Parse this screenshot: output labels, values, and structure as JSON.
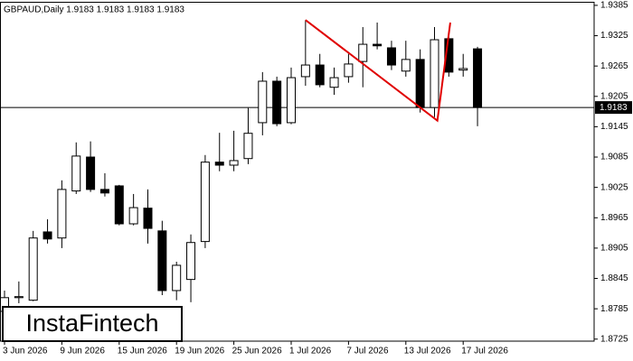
{
  "chart_data": {
    "type": "candlestick",
    "title": "GBPAUD,Daily  1.9183 1.9183 1.9183 1.9183",
    "categories": [
      "3 Jun 2026",
      null,
      null,
      null,
      "9 Jun 2026",
      null,
      null,
      null,
      "15 Jun 2026",
      null,
      null,
      null,
      "19 Jun 2026",
      null,
      null,
      null,
      "25 Jun 2026",
      null,
      null,
      null,
      "1 Jul 2026",
      null,
      null,
      null,
      "7 Jul 2026",
      null,
      null,
      null,
      "13 Jul 2026",
      null,
      null,
      null,
      "17 Jul 2026",
      null
    ],
    "open": [
      1.878,
      1.8807,
      1.8802,
      1.8937,
      1.8925,
      1.9018,
      1.9085,
      1.9021,
      1.9028,
      1.8953,
      1.8984,
      1.8939,
      1.8821,
      1.8843,
      1.8918,
      1.9075,
      1.9069,
      1.9082,
      1.9153,
      1.9235,
      1.9153,
      1.9244,
      1.9267,
      1.9223,
      1.9244,
      1.9274,
      1.9308,
      1.9301,
      1.9255,
      1.9278,
      1.9183,
      1.9319,
      1.9257,
      1.9299
    ],
    "high": [
      1.8821,
      1.8839,
      1.8939,
      1.8962,
      1.9039,
      1.9114,
      1.9116,
      1.9053,
      1.903,
      1.9012,
      1.9021,
      1.8959,
      1.8878,
      1.8932,
      1.9089,
      1.9133,
      1.9137,
      1.9182,
      1.9253,
      1.9244,
      1.9262,
      1.9356,
      1.9289,
      1.9262,
      1.9289,
      1.9342,
      1.9351,
      1.9315,
      1.9315,
      1.9298,
      1.9342,
      1.9324,
      1.9289,
      1.9303
    ],
    "low": [
      1.8771,
      1.8796,
      1.88,
      1.8914,
      1.8905,
      1.9012,
      1.9016,
      1.9007,
      1.895,
      1.895,
      1.8914,
      1.8812,
      1.8802,
      1.8798,
      1.8905,
      1.9057,
      1.9057,
      1.9071,
      1.9128,
      1.9146,
      1.915,
      1.9226,
      1.9223,
      1.9208,
      1.9232,
      1.9223,
      1.9298,
      1.9257,
      1.9244,
      1.9173,
      1.9164,
      1.9244,
      1.9244,
      1.9146
    ],
    "close": [
      1.8807,
      1.8809,
      1.8925,
      1.8923,
      1.9021,
      1.9087,
      1.9021,
      1.9014,
      1.8953,
      1.8985,
      1.8944,
      1.8821,
      1.8871,
      1.8916,
      1.9075,
      1.9069,
      1.9078,
      1.9132,
      1.9235,
      1.9151,
      1.9242,
      1.9267,
      1.9228,
      1.9242,
      1.9269,
      1.9308,
      1.9305,
      1.9267,
      1.9278,
      1.9183,
      1.9317,
      1.9253,
      1.926,
      1.9183
    ],
    "ylim": [
      1.8721,
      1.9392
    ],
    "yticks": [
      1.9385,
      1.9325,
      1.9265,
      1.9205,
      1.9145,
      1.9085,
      1.9025,
      1.8965,
      1.8905,
      1.8845,
      1.8785,
      1.8725
    ],
    "current_price": 1.9183,
    "pattern": {
      "color": "#e00000",
      "x": [
        21,
        30.2,
        31.1
      ],
      "values": [
        1.9356,
        1.9157,
        1.9351
      ]
    },
    "watermark": "InstaFintech"
  }
}
